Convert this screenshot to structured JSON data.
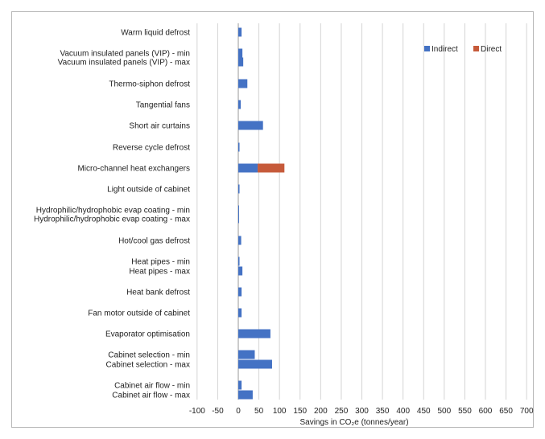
{
  "chart_data": {
    "type": "bar",
    "orientation": "horizontal",
    "stacked": true,
    "xlabel": "Savings in CO₂e (tonnes/year)",
    "xlim": [
      -100,
      700
    ],
    "xticks": [
      -100,
      -50,
      0,
      50,
      100,
      150,
      200,
      250,
      300,
      350,
      400,
      450,
      500,
      550,
      600,
      650,
      700
    ],
    "grid": "vertical",
    "legend_position": "top-right",
    "categories": [
      "Warm liquid defrost",
      "Vacuum insulated panels (VIP) - min",
      "Vacuum insulated panels (VIP) - max",
      "Thermo-siphon defrost",
      "Tangential fans",
      "Short air curtains",
      "Reverse cycle defrost",
      "Micro-channel heat exchangers",
      "Light outside of cabinet",
      "Hydrophilic/hydrophobic evap coating - min",
      "Hydrophilic/hydrophobic evap coating - max",
      "Hot/cool gas defrost",
      "Heat pipes - min",
      "Heat pipes - max",
      "Heat bank defrost",
      "Fan motor outside of cabinet",
      "Evaporator optimisation",
      "Cabinet selection - min",
      "Cabinet selection - max",
      "Cabinet air flow - min",
      "Cabinet air flow - max"
    ],
    "series": [
      {
        "name": "Indirect",
        "color": "#4472c4",
        "values": [
          8,
          10,
          12,
          22,
          6,
          60,
          3,
          47,
          3,
          1,
          2,
          7,
          3,
          10,
          8,
          8,
          78,
          40,
          82,
          8,
          35
        ]
      },
      {
        "name": "Direct",
        "color": "#c65a3a",
        "values": [
          0,
          0,
          0,
          0,
          0,
          0,
          0,
          65,
          0,
          0,
          0,
          0,
          0,
          0,
          0,
          0,
          0,
          0,
          0,
          0,
          0
        ]
      }
    ]
  }
}
